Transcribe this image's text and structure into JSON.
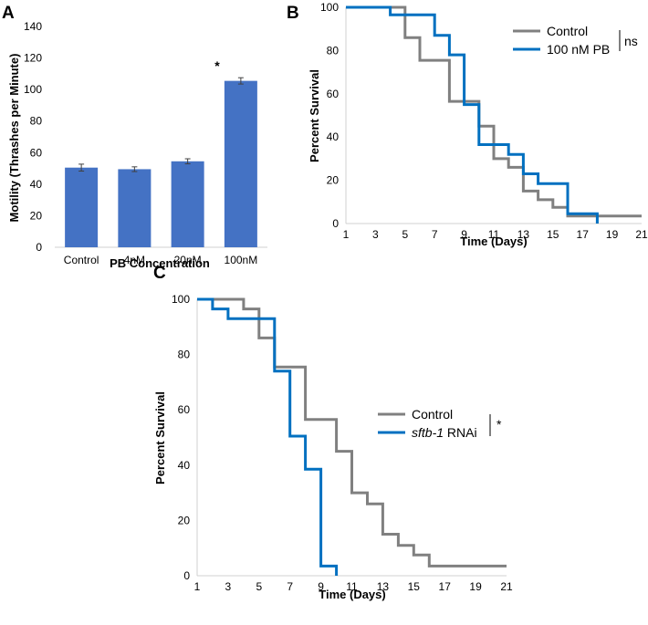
{
  "chart_data": [
    {
      "panel": "A",
      "type": "bar",
      "title": "",
      "xlabel": "PB Concentration",
      "ylabel": "Motility (Thrashes per Minute)",
      "ylim": [
        0,
        140
      ],
      "yticks": [
        0,
        20,
        40,
        60,
        80,
        100,
        120,
        140
      ],
      "categories": [
        "Control",
        "4nM",
        "20nM",
        "100nM"
      ],
      "values": [
        50.5,
        49.5,
        54.5,
        105.5
      ],
      "errors": [
        2.2,
        1.5,
        1.6,
        2.0
      ],
      "annotations": [
        "",
        "",
        "",
        "*"
      ],
      "color": "#4472c4",
      "grid": false
    },
    {
      "panel": "B",
      "type": "line",
      "step": true,
      "xlabel": "Time (Days)",
      "ylabel": "Percent Survival",
      "xlim": [
        1,
        21
      ],
      "ylim": [
        0,
        100
      ],
      "xticks": [
        1,
        3,
        5,
        7,
        9,
        11,
        13,
        15,
        17,
        19,
        21
      ],
      "yticks": [
        0,
        20,
        40,
        60,
        80,
        100
      ],
      "significance": "ns",
      "series": [
        {
          "name": "Control",
          "color": "#808080",
          "x": [
            1,
            5,
            6,
            8,
            10,
            11,
            12,
            13,
            14,
            15,
            16,
            21
          ],
          "y": [
            100,
            86,
            75.5,
            56.5,
            45,
            30,
            26,
            15,
            11,
            7.5,
            3.5,
            3.5
          ]
        },
        {
          "name": "100 nM PB",
          "color": "#0070c0",
          "x": [
            1,
            4,
            7,
            8,
            9,
            10,
            12,
            13,
            14,
            16,
            18
          ],
          "y": [
            100,
            96.5,
            87,
            78,
            55,
            36.5,
            32,
            23,
            18.5,
            4.5,
            0
          ]
        }
      ],
      "grid": false
    },
    {
      "panel": "C",
      "type": "line",
      "step": true,
      "xlabel": "Time (Days)",
      "ylabel": "Percent Survival",
      "xlim": [
        1,
        21
      ],
      "ylim": [
        0,
        100
      ],
      "xticks": [
        1,
        3,
        5,
        7,
        9,
        11,
        13,
        15,
        17,
        19,
        21
      ],
      "yticks": [
        0,
        20,
        40,
        60,
        80,
        100
      ],
      "significance": "*",
      "series": [
        {
          "name": "Control",
          "color": "#808080",
          "x": [
            1,
            4,
            5,
            6,
            8,
            10,
            11,
            12,
            13,
            14,
            15,
            16,
            21
          ],
          "y": [
            100,
            96.5,
            86,
            75.5,
            56.5,
            45,
            30,
            26,
            15,
            11,
            7.5,
            3.5,
            3.5
          ]
        },
        {
          "name": "sftb-1 RNAi",
          "name_italic": "sftb-1",
          "name_rest": " RNAi",
          "color": "#0070c0",
          "x": [
            1,
            2,
            3,
            6,
            7,
            8,
            9,
            10
          ],
          "y": [
            100,
            96.5,
            93,
            74,
            50.5,
            38.5,
            3.5,
            0
          ]
        }
      ],
      "grid": false
    }
  ]
}
